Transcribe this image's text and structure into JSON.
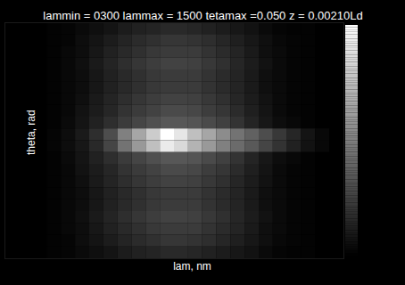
{
  "chart_data": {
    "type": "heatmap",
    "title": "lammin = 0300 lammax = 1500 tetamax =0.050 z = 0.00210Ld",
    "x_label": "lam, nm",
    "y_label": "theta, rad",
    "xlim": [
      300,
      1500
    ],
    "ylim": [
      -0.05,
      0.05
    ],
    "tick_labels": false,
    "x": [
      325,
      375,
      425,
      475,
      525,
      575,
      625,
      675,
      725,
      775,
      825,
      875,
      925,
      975,
      1025,
      1075,
      1125,
      1175,
      1225,
      1275,
      1325,
      1375,
      1425,
      1475
    ],
    "y": [
      0.0475,
      0.0425,
      0.0375,
      0.0325,
      0.0275,
      0.0225,
      0.0175,
      0.0125,
      0.0075,
      0.0025,
      -0.0025,
      -0.0075,
      -0.0125,
      -0.0175,
      -0.0225,
      -0.0275,
      -0.0325,
      -0.0375,
      -0.0425,
      -0.0475
    ],
    "values": [
      [
        0,
        0,
        0,
        0.01,
        0.02,
        0.04,
        0.06,
        0.08,
        0.11,
        0.13,
        0.14,
        0.16,
        0.16,
        0.15,
        0.13,
        0.11,
        0.09,
        0.07,
        0.04,
        0.02,
        0.01,
        0.01,
        0,
        0
      ],
      [
        0,
        0,
        0,
        0.01,
        0.02,
        0.05,
        0.08,
        0.11,
        0.14,
        0.17,
        0.19,
        0.21,
        0.21,
        0.2,
        0.18,
        0.15,
        0.12,
        0.09,
        0.06,
        0.03,
        0.02,
        0.01,
        0,
        0
      ],
      [
        0,
        0,
        0,
        0.01,
        0.03,
        0.05,
        0.09,
        0.13,
        0.16,
        0.19,
        0.22,
        0.23,
        0.23,
        0.23,
        0.2,
        0.17,
        0.14,
        0.1,
        0.06,
        0.04,
        0.02,
        0.01,
        0,
        0
      ],
      [
        0,
        0,
        0,
        0.01,
        0.03,
        0.06,
        0.1,
        0.14,
        0.18,
        0.21,
        0.24,
        0.26,
        0.26,
        0.25,
        0.22,
        0.19,
        0.15,
        0.11,
        0.07,
        0.04,
        0.02,
        0.01,
        0,
        0
      ],
      [
        0,
        0,
        0,
        0.01,
        0.03,
        0.05,
        0.09,
        0.13,
        0.16,
        0.19,
        0.22,
        0.23,
        0.23,
        0.23,
        0.2,
        0.17,
        0.14,
        0.1,
        0.06,
        0.04,
        0.02,
        0.01,
        0,
        0
      ],
      [
        0,
        0,
        0,
        0.01,
        0.03,
        0.05,
        0.09,
        0.13,
        0.16,
        0.19,
        0.22,
        0.23,
        0.23,
        0.23,
        0.2,
        0.17,
        0.14,
        0.1,
        0.06,
        0.04,
        0.02,
        0.01,
        0,
        0
      ],
      [
        0,
        0,
        0,
        0.01,
        0.03,
        0.06,
        0.1,
        0.14,
        0.18,
        0.21,
        0.24,
        0.26,
        0.26,
        0.25,
        0.22,
        0.19,
        0.15,
        0.11,
        0.07,
        0.04,
        0.02,
        0.01,
        0,
        0
      ],
      [
        0,
        0,
        0,
        0.01,
        0.03,
        0.07,
        0.11,
        0.15,
        0.2,
        0.23,
        0.26,
        0.29,
        0.29,
        0.28,
        0.24,
        0.21,
        0.17,
        0.12,
        0.08,
        0.04,
        0.02,
        0.01,
        0,
        0
      ],
      [
        0,
        0,
        0,
        0.01,
        0.04,
        0.08,
        0.13,
        0.18,
        0.23,
        0.27,
        0.31,
        0.34,
        0.34,
        0.33,
        0.29,
        0.25,
        0.2,
        0.14,
        0.09,
        0.05,
        0.03,
        0.01,
        0,
        0
      ],
      [
        0,
        0,
        0,
        0.02,
        0.05,
        0.1,
        0.18,
        0.3,
        0.5,
        0.65,
        0.8,
        1.0,
        0.9,
        0.75,
        0.65,
        0.55,
        0.45,
        0.38,
        0.3,
        0.22,
        0.15,
        0.08,
        0.03,
        0
      ],
      [
        0,
        0,
        0,
        0.02,
        0.05,
        0.09,
        0.16,
        0.27,
        0.45,
        0.6,
        0.75,
        0.92,
        0.85,
        0.7,
        0.6,
        0.5,
        0.42,
        0.35,
        0.27,
        0.2,
        0.13,
        0.07,
        0.03,
        0
      ],
      [
        0,
        0,
        0,
        0.01,
        0.04,
        0.08,
        0.13,
        0.18,
        0.23,
        0.27,
        0.31,
        0.34,
        0.34,
        0.33,
        0.29,
        0.25,
        0.2,
        0.14,
        0.09,
        0.05,
        0.03,
        0.01,
        0,
        0
      ],
      [
        0,
        0,
        0,
        0.01,
        0.03,
        0.07,
        0.11,
        0.15,
        0.2,
        0.23,
        0.26,
        0.29,
        0.29,
        0.28,
        0.24,
        0.21,
        0.17,
        0.12,
        0.08,
        0.04,
        0.02,
        0.01,
        0,
        0
      ],
      [
        0,
        0,
        0,
        0.01,
        0.03,
        0.06,
        0.1,
        0.14,
        0.18,
        0.21,
        0.24,
        0.26,
        0.26,
        0.25,
        0.22,
        0.19,
        0.15,
        0.11,
        0.07,
        0.04,
        0.02,
        0.01,
        0,
        0
      ],
      [
        0,
        0,
        0,
        0.01,
        0.03,
        0.05,
        0.09,
        0.13,
        0.16,
        0.19,
        0.22,
        0.23,
        0.23,
        0.23,
        0.2,
        0.17,
        0.14,
        0.1,
        0.06,
        0.04,
        0.02,
        0.01,
        0,
        0
      ],
      [
        0,
        0,
        0,
        0.01,
        0.03,
        0.05,
        0.09,
        0.13,
        0.16,
        0.19,
        0.22,
        0.23,
        0.23,
        0.23,
        0.2,
        0.17,
        0.14,
        0.1,
        0.06,
        0.04,
        0.02,
        0.01,
        0,
        0
      ],
      [
        0,
        0,
        0,
        0.01,
        0.03,
        0.06,
        0.1,
        0.14,
        0.18,
        0.21,
        0.24,
        0.26,
        0.26,
        0.25,
        0.22,
        0.19,
        0.15,
        0.11,
        0.07,
        0.04,
        0.02,
        0.01,
        0,
        0
      ],
      [
        0,
        0,
        0,
        0.01,
        0.03,
        0.05,
        0.09,
        0.13,
        0.16,
        0.19,
        0.22,
        0.23,
        0.23,
        0.23,
        0.2,
        0.17,
        0.14,
        0.1,
        0.06,
        0.04,
        0.02,
        0.01,
        0,
        0
      ],
      [
        0,
        0,
        0,
        0.01,
        0.02,
        0.05,
        0.08,
        0.11,
        0.14,
        0.17,
        0.19,
        0.21,
        0.21,
        0.2,
        0.18,
        0.15,
        0.12,
        0.09,
        0.06,
        0.03,
        0.02,
        0.01,
        0,
        0
      ],
      [
        0,
        0,
        0,
        0.01,
        0.02,
        0.04,
        0.06,
        0.08,
        0.11,
        0.13,
        0.14,
        0.16,
        0.16,
        0.15,
        0.13,
        0.11,
        0.09,
        0.07,
        0.04,
        0.02,
        0.01,
        0.01,
        0,
        0
      ]
    ],
    "colorbar": {
      "range": [
        0,
        1
      ]
    }
  }
}
